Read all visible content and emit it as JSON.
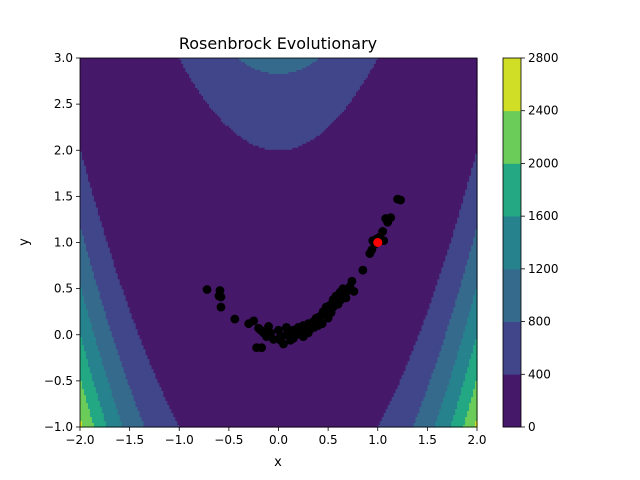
{
  "chart_data": {
    "type": "scatter",
    "title": "Rosenbrock Evolutionary",
    "xlabel": "x",
    "ylabel": "y",
    "xlim": [
      -2.0,
      2.0
    ],
    "ylim": [
      -1.0,
      3.0
    ],
    "x_ticks": [
      "−2.0",
      "−1.5",
      "−1.0",
      "−0.5",
      "0.0",
      "0.5",
      "1.0",
      "1.5",
      "2.0"
    ],
    "y_ticks": [
      "−1.0",
      "−0.5",
      "0.0",
      "0.5",
      "1.0",
      "1.5",
      "2.0",
      "2.5",
      "3.0"
    ],
    "background": {
      "type": "contourf",
      "function": "rosenbrock",
      "levels": [
        0,
        400,
        800,
        1200,
        1600,
        2000,
        2400,
        2800
      ],
      "colors": [
        "#46186a",
        "#41468a",
        "#356a8c",
        "#26838e",
        "#23a883",
        "#6bcc5a",
        "#d0df26"
      ]
    },
    "colorbar": {
      "ticks": [
        "0",
        "400",
        "800",
        "1200",
        "1600",
        "2000",
        "2400",
        "2800"
      ]
    },
    "series": [
      {
        "color": "#000000",
        "points": [
          [
            -0.72,
            0.49
          ],
          [
            -0.59,
            0.48
          ],
          [
            -0.6,
            0.42
          ],
          [
            -0.58,
            0.41
          ],
          [
            -0.58,
            0.3
          ],
          [
            -0.44,
            0.17
          ],
          [
            -0.3,
            0.12
          ],
          [
            -0.25,
            0.15
          ],
          [
            -0.2,
            0.07
          ],
          [
            -0.18,
            0.05
          ],
          [
            -0.22,
            -0.14
          ],
          [
            -0.17,
            -0.14
          ],
          [
            -0.15,
            0.02
          ],
          [
            -0.1,
            0.09
          ],
          [
            -0.05,
            -0.05
          ],
          [
            -0.08,
            0.02
          ],
          [
            0.0,
            0.05
          ],
          [
            0.02,
            -0.02
          ],
          [
            0.05,
            -0.1
          ],
          [
            0.08,
            0.0
          ],
          [
            0.1,
            0.03
          ],
          [
            0.12,
            -0.06
          ],
          [
            0.15,
            0.05
          ],
          [
            0.18,
            0.0
          ],
          [
            0.2,
            0.08
          ],
          [
            0.22,
            0.02
          ],
          [
            0.25,
            0.1
          ],
          [
            0.28,
            0.04
          ],
          [
            0.3,
            0.12
          ],
          [
            0.32,
            0.06
          ],
          [
            0.35,
            0.14
          ],
          [
            0.36,
            0.08
          ],
          [
            0.38,
            0.18
          ],
          [
            0.4,
            0.15
          ],
          [
            0.42,
            0.2
          ],
          [
            0.44,
            0.12
          ],
          [
            0.45,
            0.25
          ],
          [
            0.47,
            0.22
          ],
          [
            0.48,
            0.3
          ],
          [
            0.5,
            0.27
          ],
          [
            0.52,
            0.32
          ],
          [
            0.53,
            0.24
          ],
          [
            0.55,
            0.38
          ],
          [
            0.57,
            0.35
          ],
          [
            0.58,
            0.42
          ],
          [
            0.6,
            0.4
          ],
          [
            0.62,
            0.46
          ],
          [
            0.63,
            0.38
          ],
          [
            0.65,
            0.5
          ],
          [
            0.67,
            0.45
          ],
          [
            0.7,
            0.48
          ],
          [
            0.72,
            0.52
          ],
          [
            0.74,
            0.58
          ],
          [
            0.76,
            0.47
          ],
          [
            0.85,
            0.7
          ],
          [
            0.92,
            0.88
          ],
          [
            0.94,
            0.92
          ],
          [
            0.95,
            1.02
          ],
          [
            0.97,
            0.98
          ],
          [
            0.99,
            1.04
          ],
          [
            1.02,
            1.06
          ],
          [
            1.05,
            1.12
          ],
          [
            1.06,
            1.02
          ],
          [
            1.08,
            1.26
          ],
          [
            1.1,
            1.22
          ],
          [
            1.13,
            1.27
          ],
          [
            1.2,
            1.47
          ],
          [
            1.23,
            1.46
          ],
          [
            0.25,
            -0.02
          ],
          [
            0.3,
            0.02
          ],
          [
            0.15,
            -0.04
          ],
          [
            0.08,
            0.08
          ],
          [
            0.4,
            0.1
          ],
          [
            0.55,
            0.3
          ],
          [
            0.6,
            0.33
          ],
          [
            0.65,
            0.42
          ],
          [
            0.68,
            0.4
          ],
          [
            0.5,
            0.18
          ],
          [
            -0.12,
            -0.02
          ],
          [
            0.02,
            -0.06
          ]
        ]
      },
      {
        "color": "#ff0000",
        "points": [
          [
            1.0,
            1.0
          ]
        ]
      }
    ],
    "grid": false,
    "legend": "none"
  }
}
